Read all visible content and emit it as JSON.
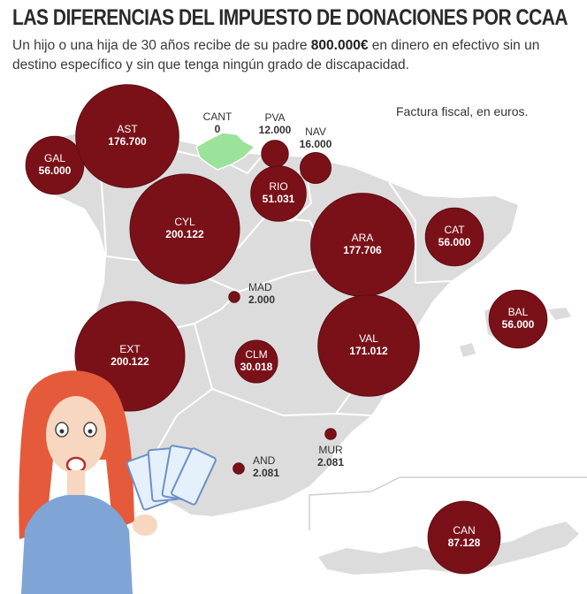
{
  "header": {
    "title": "LAS DIFERENCIAS DEL IMPUESTO DE DONACIONES POR CCAA",
    "subtitle_before": "Un hijo o una hija de 30 años recibe de su padre ",
    "subtitle_bold": "800.000€",
    "subtitle_after": " en dinero en efectivo sin un destino específico y sin que tenga ningún grado de discapacidad."
  },
  "note": "Factura fiscal, en euros.",
  "colors": {
    "bubble": "#7a1119",
    "bubble_edge": "#5c0c12",
    "map_land": "#dcdcdc",
    "map_border": "#ffffff",
    "cant_region": "#9be29a",
    "label_dark": "#333333",
    "label_light": "#ffffff"
  },
  "chart_data": {
    "type": "bubble-map",
    "title": "LAS DIFERENCIAS DEL IMPUESTO DE DONACIONES POR CCAA",
    "unit": "euros",
    "categories": [
      "GAL",
      "AST",
      "CANT",
      "PVA",
      "NAV",
      "RIO",
      "CYL",
      "ARA",
      "CAT",
      "BAL",
      "MAD",
      "EXT",
      "CLM",
      "VAL",
      "MUR",
      "AND",
      "CAN"
    ],
    "values": [
      56000,
      176700,
      0,
      12000,
      16000,
      51031,
      200122,
      177706,
      56000,
      56000,
      2000,
      200122,
      30018,
      171012,
      2081,
      2081,
      87128
    ],
    "value_labels": [
      "56.000",
      "176.700",
      "0",
      "12.000",
      "16.000",
      "51.031",
      "200.122",
      "177.706",
      "56.000",
      "56.000",
      "2.000",
      "200.122",
      "30.018",
      "171.012",
      "2.081",
      "2.081",
      "87.128"
    ]
  }
}
